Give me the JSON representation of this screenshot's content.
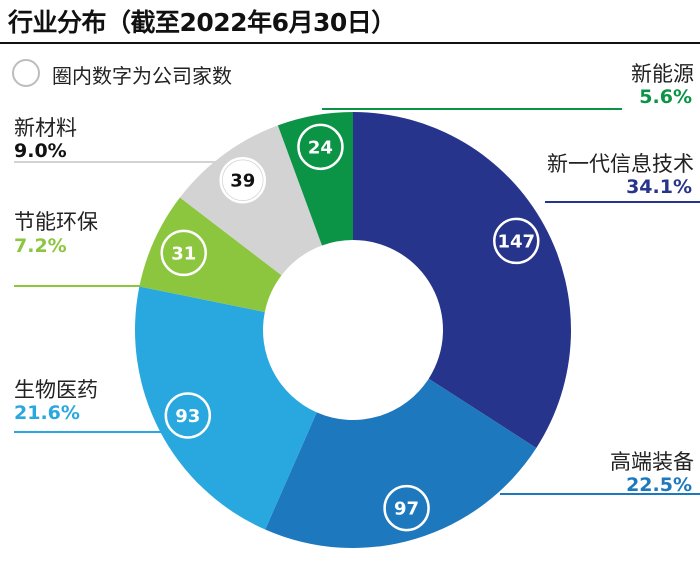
{
  "title": "行业分布（截至2022年6月30日）",
  "legend_note": "圈内数字为公司家数",
  "chart_data": {
    "type": "pie",
    "title": "行业分布（截至2022年6月30日）",
    "note": "圈内数字为公司家数",
    "slices": [
      {
        "name": "新一代信息技术",
        "percent": "34.1%",
        "value": 34.1,
        "count": "147",
        "color": "#27348b"
      },
      {
        "name": "高端装备",
        "percent": "22.5%",
        "value": 22.5,
        "count": "97",
        "color": "#1d78be"
      },
      {
        "name": "生物医药",
        "percent": "21.6%",
        "value": 21.6,
        "count": "93",
        "color": "#29a8df"
      },
      {
        "name": "节能环保",
        "percent": "7.2%",
        "value": 7.2,
        "count": "31",
        "color": "#8cc63f"
      },
      {
        "name": "新材料",
        "percent": "9.0%",
        "value": 9.0,
        "count": "39",
        "color": "#d3d3d3"
      },
      {
        "name": "新能源",
        "percent": "5.6%",
        "value": 5.6,
        "count": "24",
        "color": "#0b9445"
      }
    ]
  }
}
